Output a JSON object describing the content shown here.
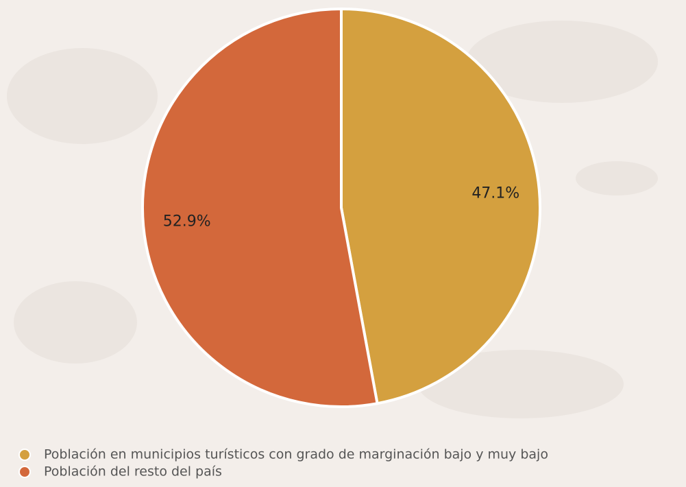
{
  "chart_data": {
    "type": "pie",
    "categories": [
      "Población en municipios turísticos con grado de marginación bajo y muy bajo",
      "Población del resto del país"
    ],
    "values": [
      47.1,
      52.9
    ],
    "value_labels": [
      "47.1%",
      "52.9%"
    ],
    "colors": [
      "#d4a03f",
      "#d3683b"
    ]
  }
}
